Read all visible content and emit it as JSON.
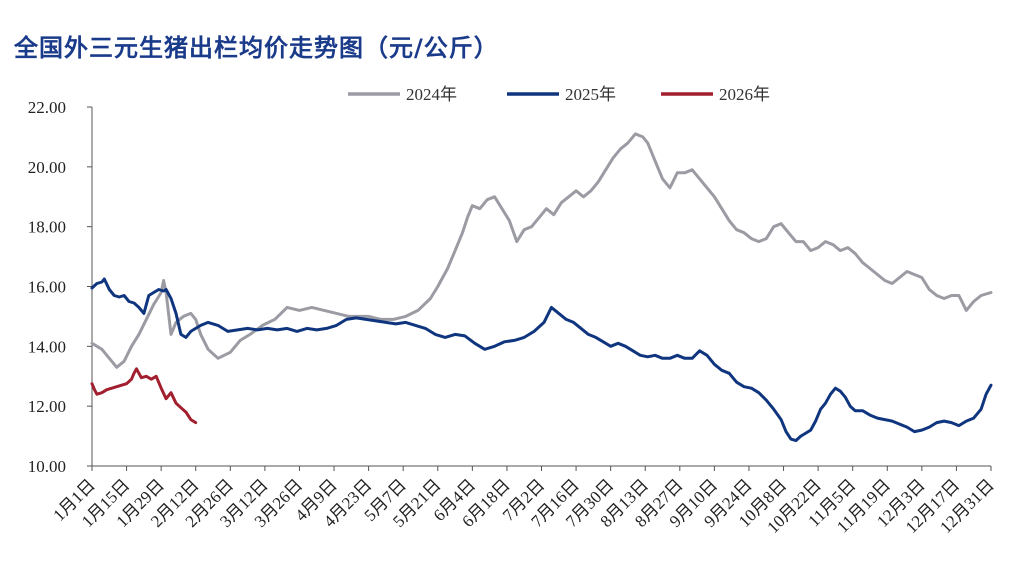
{
  "title": "全国外三元生猪出栏均价走势图（元/公斤）",
  "chart_data": {
    "type": "line",
    "title": "全国外三元生猪出栏均价走势图（元/公斤）",
    "ylim": [
      10,
      22
    ],
    "yticks": [
      10,
      12,
      14,
      16,
      18,
      20,
      22
    ],
    "ytick_labels": [
      "10.00",
      "12.00",
      "14.00",
      "16.00",
      "18.00",
      "20.00",
      "22.00"
    ],
    "xlim": [
      1,
      365
    ],
    "xticks": [
      1,
      15,
      29,
      43,
      57,
      71,
      85,
      99,
      113,
      127,
      141,
      155,
      169,
      183,
      197,
      211,
      225,
      239,
      253,
      267,
      281,
      295,
      309,
      323,
      337,
      351,
      365
    ],
    "xtick_labels": [
      "1月1日",
      "1月15日",
      "1月29日",
      "2月12日",
      "2月26日",
      "3月12日",
      "3月26日",
      "4月9日",
      "4月23日",
      "5月7日",
      "5月21日",
      "6月4日",
      "6月18日",
      "7月2日",
      "7月16日",
      "7月30日",
      "8月13日",
      "8月27日",
      "9月10日",
      "9月24日",
      "10月8日",
      "10月22日",
      "11月5日",
      "11月19日",
      "12月3日",
      "12月17日",
      "12月31日"
    ],
    "legend_position": "top-center",
    "series": [
      {
        "name": "2024年",
        "color": "#9b9ba3",
        "x": [
          1,
          5,
          8,
          11,
          14,
          17,
          20,
          23,
          26,
          29,
          30,
          31,
          33,
          35,
          38,
          41,
          43,
          45,
          48,
          52,
          57,
          61,
          65,
          70,
          75,
          80,
          85,
          90,
          95,
          100,
          105,
          110,
          113,
          118,
          123,
          128,
          133,
          138,
          141,
          145,
          148,
          151,
          153,
          155,
          158,
          161,
          164,
          167,
          170,
          173,
          176,
          179,
          182,
          185,
          188,
          191,
          194,
          197,
          200,
          203,
          206,
          209,
          212,
          215,
          218,
          221,
          224,
          226,
          229,
          232,
          235,
          238,
          241,
          244,
          247,
          250,
          253,
          256,
          259,
          262,
          265,
          268,
          271,
          274,
          277,
          280,
          283,
          286,
          289,
          292,
          295,
          298,
          301,
          304,
          307,
          310,
          313,
          316,
          319,
          322,
          325,
          328,
          331,
          334,
          337,
          340,
          343,
          346,
          349,
          352,
          355,
          358,
          361,
          365
        ],
        "y": [
          14.1,
          13.9,
          13.6,
          13.3,
          13.5,
          14.0,
          14.4,
          14.9,
          15.4,
          15.8,
          16.2,
          15.8,
          14.4,
          14.8,
          15.0,
          15.1,
          14.9,
          14.4,
          13.9,
          13.6,
          13.8,
          14.2,
          14.4,
          14.7,
          14.9,
          15.3,
          15.2,
          15.3,
          15.2,
          15.1,
          15.0,
          15.0,
          15.0,
          14.9,
          14.9,
          15.0,
          15.2,
          15.6,
          16.0,
          16.6,
          17.2,
          17.8,
          18.3,
          18.7,
          18.6,
          18.9,
          19.0,
          18.6,
          18.2,
          17.5,
          17.9,
          18.0,
          18.3,
          18.6,
          18.4,
          18.8,
          19.0,
          19.2,
          19.0,
          19.2,
          19.5,
          19.9,
          20.3,
          20.6,
          20.8,
          21.1,
          21.0,
          20.8,
          20.2,
          19.6,
          19.3,
          19.8,
          19.8,
          19.9,
          19.6,
          19.3,
          19.0,
          18.6,
          18.2,
          17.9,
          17.8,
          17.6,
          17.5,
          17.6,
          18.0,
          18.1,
          17.8,
          17.5,
          17.5,
          17.2,
          17.3,
          17.5,
          17.4,
          17.2,
          17.3,
          17.1,
          16.8,
          16.6,
          16.4,
          16.2,
          16.1,
          16.3,
          16.5,
          16.4,
          16.3,
          15.9,
          15.7,
          15.6,
          15.7,
          15.7,
          15.2,
          15.5,
          15.7,
          15.8
        ]
      },
      {
        "name": "2025年",
        "color": "#10357f",
        "x": [
          1,
          3,
          5,
          6,
          8,
          10,
          12,
          14,
          16,
          18,
          20,
          22,
          24,
          26,
          28,
          30,
          31,
          33,
          35,
          37,
          39,
          41,
          43,
          45,
          48,
          52,
          56,
          60,
          64,
          68,
          72,
          76,
          80,
          84,
          88,
          92,
          96,
          100,
          104,
          108,
          112,
          116,
          120,
          124,
          128,
          132,
          136,
          140,
          144,
          148,
          152,
          156,
          160,
          164,
          168,
          172,
          176,
          180,
          184,
          187,
          190,
          193,
          196,
          199,
          202,
          205,
          208,
          211,
          214,
          217,
          220,
          223,
          226,
          229,
          232,
          235,
          238,
          241,
          244,
          247,
          250,
          253,
          256,
          259,
          262,
          265,
          268,
          271,
          274,
          277,
          280,
          282,
          284,
          286,
          288,
          290,
          292,
          294,
          296,
          298,
          300,
          302,
          304,
          306,
          308,
          310,
          313,
          316,
          319,
          322,
          325,
          328,
          331,
          334,
          337,
          340,
          343,
          346,
          349,
          352,
          355,
          358,
          361,
          363,
          365
        ],
        "y": [
          15.95,
          16.1,
          16.15,
          16.25,
          15.9,
          15.7,
          15.65,
          15.7,
          15.5,
          15.45,
          15.3,
          15.1,
          15.7,
          15.8,
          15.9,
          15.85,
          15.9,
          15.6,
          15.1,
          14.4,
          14.3,
          14.5,
          14.6,
          14.7,
          14.8,
          14.7,
          14.5,
          14.55,
          14.6,
          14.55,
          14.6,
          14.55,
          14.6,
          14.5,
          14.6,
          14.55,
          14.6,
          14.7,
          14.9,
          14.95,
          14.9,
          14.85,
          14.8,
          14.75,
          14.8,
          14.7,
          14.6,
          14.4,
          14.3,
          14.4,
          14.35,
          14.1,
          13.9,
          14.0,
          14.15,
          14.2,
          14.3,
          14.5,
          14.8,
          15.3,
          15.1,
          14.9,
          14.8,
          14.6,
          14.4,
          14.3,
          14.15,
          14.0,
          14.1,
          14.0,
          13.85,
          13.7,
          13.65,
          13.7,
          13.6,
          13.6,
          13.7,
          13.6,
          13.6,
          13.85,
          13.7,
          13.4,
          13.2,
          13.1,
          12.8,
          12.65,
          12.6,
          12.45,
          12.2,
          11.9,
          11.55,
          11.15,
          10.9,
          10.85,
          11.0,
          11.1,
          11.2,
          11.5,
          11.9,
          12.1,
          12.4,
          12.6,
          12.5,
          12.3,
          12.0,
          11.85,
          11.85,
          11.7,
          11.6,
          11.55,
          11.5,
          11.4,
          11.3,
          11.15,
          11.2,
          11.3,
          11.45,
          11.5,
          11.45,
          11.35,
          11.5,
          11.6,
          11.9,
          12.4,
          12.7
        ]
      },
      {
        "name": "2026年",
        "color": "#a21f2f",
        "x": [
          1,
          2,
          3,
          5,
          7,
          9,
          11,
          13,
          15,
          17,
          18,
          19,
          20,
          21,
          23,
          25,
          27,
          29,
          31,
          33,
          35,
          37,
          39,
          41,
          43
        ],
        "y": [
          12.75,
          12.55,
          12.4,
          12.45,
          12.55,
          12.6,
          12.65,
          12.7,
          12.75,
          12.9,
          13.1,
          13.25,
          13.1,
          12.95,
          13.0,
          12.9,
          13.0,
          12.6,
          12.25,
          12.45,
          12.1,
          11.95,
          11.8,
          11.55,
          11.45
        ]
      }
    ]
  }
}
